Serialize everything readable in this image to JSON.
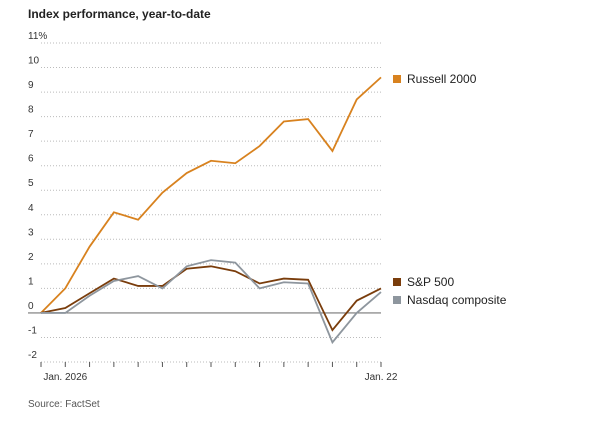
{
  "chart_data": {
    "type": "line",
    "title": "Index performance, year-to-date",
    "source": "Source: FactSet",
    "categories": [
      null,
      "Jan. 2026",
      null,
      null,
      null,
      null,
      null,
      null,
      null,
      null,
      null,
      null,
      null,
      null,
      "Jan. 22"
    ],
    "series": [
      {
        "name": "Russell 2000",
        "color": "#d8821f",
        "values": [
          0,
          1.0,
          2.7,
          4.1,
          3.8,
          4.9,
          5.7,
          6.2,
          6.1,
          6.8,
          7.8,
          7.9,
          6.6,
          8.7,
          9.6
        ]
      },
      {
        "name": "S&P 500",
        "color": "#7a3d0c",
        "values": [
          0,
          0.2,
          0.8,
          1.4,
          1.1,
          1.1,
          1.8,
          1.9,
          1.7,
          1.2,
          1.4,
          1.35,
          -0.7,
          0.5,
          1.0
        ]
      },
      {
        "name": "Nasdaq composite",
        "color": "#8e969e",
        "values": [
          0,
          0,
          0.7,
          1.3,
          1.5,
          1.0,
          1.9,
          2.15,
          2.05,
          1.0,
          1.25,
          1.2,
          -1.2,
          0.0,
          0.85
        ]
      }
    ],
    "ylim": [
      -2,
      11
    ],
    "yticks": [
      -2,
      -1,
      0,
      1,
      2,
      3,
      4,
      5,
      6,
      7,
      8,
      9,
      10,
      {
        "value": 11,
        "label": "11%"
      }
    ],
    "grid": true
  }
}
